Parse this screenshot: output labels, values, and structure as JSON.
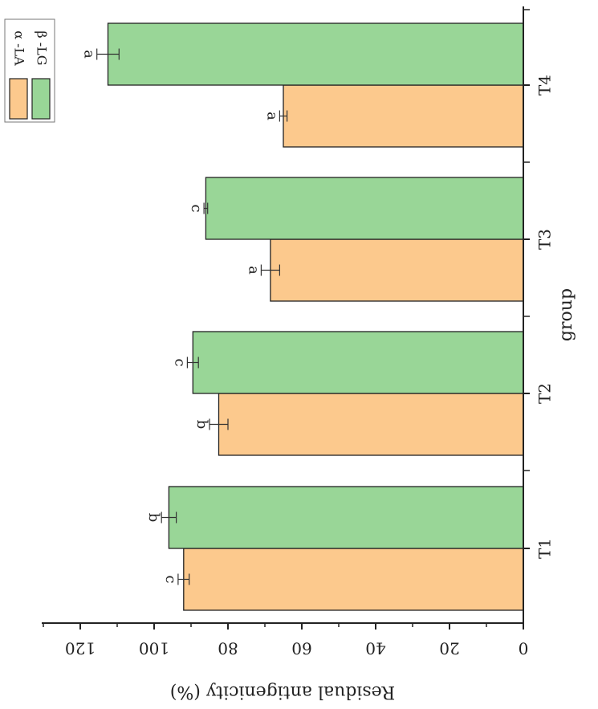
{
  "chart_data": {
    "type": "bar",
    "orientation": "horizontal-bars-rotated",
    "categories": [
      "T1",
      "T2",
      "T3",
      "T4"
    ],
    "series": [
      {
        "name": "α -LA",
        "color": "#fcc98d",
        "values": [
          92,
          82.5,
          68.5,
          65
        ],
        "errors": [
          1.5,
          2.5,
          2.5,
          1
        ],
        "letters": [
          "c",
          "b",
          "a",
          "a"
        ]
      },
      {
        "name": "β -LG",
        "color": "#99d697",
        "values": [
          96,
          89.5,
          86,
          112.5
        ],
        "errors": [
          2,
          1.5,
          0.5,
          3
        ],
        "letters": [
          "b",
          "c",
          "c",
          "a"
        ]
      }
    ],
    "xlabel": "group",
    "ylabel": "Residual antigenicity (%)",
    "ylim": [
      0,
      130
    ],
    "yticks": [
      0,
      20,
      40,
      60,
      80,
      100,
      120
    ],
    "legend_position": "top-left",
    "grid": false
  }
}
